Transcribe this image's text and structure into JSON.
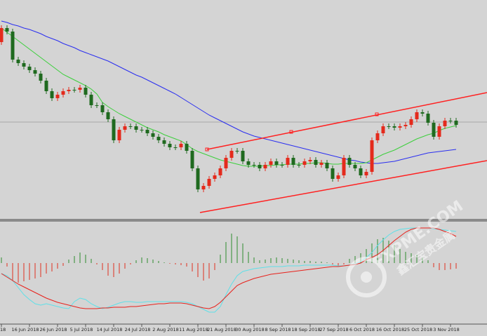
{
  "chart_data": [
    {
      "type": "candlestick",
      "categories": [
        "18",
        null,
        null,
        null,
        null,
        "16 Jun 2018",
        null,
        null,
        null,
        null,
        "26 Jun 2018",
        null,
        null,
        null,
        null,
        "5 Jul 2018",
        null,
        null,
        null,
        null,
        "14 Jul 2018",
        null,
        null,
        null,
        null,
        "24 Jul 2018",
        null,
        null,
        null,
        null,
        "2 Aug 2018",
        null,
        null,
        null,
        null,
        "11 Aug 2018",
        null,
        null,
        null,
        null,
        "21 Aug 2018",
        null,
        null,
        null,
        null,
        "30 Aug 2018",
        null,
        null,
        null,
        null,
        "8 Sep 2018",
        null,
        null,
        null,
        null,
        "18 Sep 2018",
        null,
        null,
        null,
        null,
        "27 Sep 2018",
        null,
        null,
        null,
        null,
        "6 Oct 2018",
        null,
        null,
        null,
        null,
        "16 Oct 2018",
        null,
        null,
        null,
        null,
        "25 Oct 2018",
        null,
        null,
        null,
        null,
        "3 Nov 2018",
        null
      ],
      "open": [
        252,
        272,
        267,
        227,
        222,
        217,
        212,
        207,
        197,
        182,
        172,
        177,
        182,
        184,
        184,
        187,
        177,
        162,
        162,
        152,
        142,
        112,
        127,
        132,
        132,
        127,
        127,
        122,
        117,
        112,
        107,
        102,
        102,
        107,
        97,
        72,
        42,
        47,
        57,
        62,
        72,
        87,
        97,
        97,
        82,
        77,
        77,
        72,
        77,
        82,
        77,
        77,
        87,
        77,
        77,
        82,
        84,
        77,
        80,
        72,
        57,
        62,
        87,
        77,
        72,
        62,
        67,
        112,
        122,
        132,
        132,
        130,
        132,
        134,
        142,
        152,
        150,
        137,
        117,
        132,
        140,
        140
      ],
      "high": [
        276,
        276,
        271,
        231,
        226,
        221,
        216,
        211,
        201,
        186,
        181,
        186,
        188,
        188,
        191,
        191,
        181,
        166,
        166,
        156,
        146,
        131,
        136,
        136,
        136,
        131,
        131,
        126,
        121,
        116,
        111,
        106,
        111,
        111,
        101,
        76,
        51,
        61,
        66,
        76,
        91,
        101,
        101,
        101,
        86,
        81,
        81,
        81,
        86,
        86,
        81,
        91,
        91,
        81,
        86,
        88,
        88,
        84,
        84,
        76,
        66,
        91,
        91,
        81,
        76,
        71,
        116,
        126,
        136,
        136,
        136,
        136,
        138,
        146,
        156,
        156,
        154,
        141,
        136,
        144,
        144,
        144
      ],
      "low": [
        248,
        263,
        223,
        218,
        213,
        208,
        203,
        193,
        178,
        168,
        168,
        173,
        178,
        180,
        180,
        173,
        158,
        158,
        148,
        138,
        108,
        108,
        123,
        128,
        123,
        123,
        118,
        113,
        108,
        103,
        98,
        98,
        98,
        93,
        68,
        38,
        38,
        43,
        53,
        58,
        68,
        83,
        93,
        78,
        73,
        73,
        68,
        68,
        73,
        73,
        73,
        73,
        73,
        73,
        73,
        78,
        73,
        73,
        68,
        53,
        53,
        58,
        73,
        68,
        58,
        58,
        63,
        108,
        118,
        128,
        126,
        126,
        128,
        130,
        138,
        146,
        133,
        113,
        113,
        128,
        136,
        130
      ],
      "close": [
        272,
        267,
        227,
        222,
        217,
        212,
        207,
        197,
        182,
        172,
        177,
        182,
        184,
        184,
        187,
        177,
        162,
        162,
        152,
        142,
        112,
        127,
        132,
        132,
        127,
        127,
        122,
        117,
        112,
        107,
        102,
        102,
        107,
        97,
        72,
        42,
        47,
        57,
        62,
        72,
        87,
        97,
        97,
        82,
        77,
        77,
        72,
        77,
        82,
        77,
        77,
        87,
        77,
        77,
        82,
        84,
        77,
        80,
        72,
        57,
        62,
        87,
        77,
        72,
        62,
        67,
        112,
        122,
        132,
        132,
        130,
        132,
        134,
        142,
        152,
        150,
        137,
        117,
        132,
        140,
        140,
        134
      ],
      "up_color": "#e42a1c",
      "down_color": "#1f6a1f",
      "series": [
        {
          "color": "#2a2ef0",
          "values": [
            282,
            280,
            277,
            275,
            272,
            270,
            267,
            264,
            260,
            257,
            254,
            250,
            247,
            244,
            240,
            237,
            234,
            231,
            228,
            225,
            221,
            217,
            213,
            209,
            205,
            202,
            198,
            194,
            190,
            186,
            182,
            178,
            173,
            168,
            163,
            158,
            153,
            148,
            144,
            140,
            136,
            132,
            128,
            124,
            121,
            118,
            116,
            114,
            112,
            110,
            108,
            106,
            104,
            102,
            100,
            98,
            96,
            94,
            92,
            90,
            88,
            86,
            84,
            83,
            81,
            80,
            79,
            79,
            80,
            81,
            82,
            84,
            86,
            88,
            90,
            92,
            94,
            95,
            96,
            97,
            98,
            99
          ]
        },
        {
          "color": "#3ccf3c",
          "values": [
            272,
            266,
            260,
            254,
            248,
            242,
            236,
            230,
            224,
            218,
            212,
            206,
            202,
            198,
            194,
            190,
            185,
            178,
            166,
            160,
            155,
            150,
            146,
            142,
            138,
            134,
            130,
            127,
            124,
            120,
            117,
            114,
            111,
            106,
            100,
            96,
            93,
            90,
            87,
            84,
            82,
            80,
            78,
            76,
            75,
            75,
            75,
            76,
            76,
            77,
            77,
            78,
            78,
            78,
            79,
            79,
            80,
            80,
            79,
            78,
            78,
            79,
            79,
            79,
            79,
            80,
            84,
            88,
            92,
            95,
            98,
            102,
            106,
            110,
            114,
            117,
            120,
            122,
            126,
            129,
            131,
            133
          ]
        }
      ],
      "ylim": [
        0,
        312
      ]
    },
    {
      "type": "macd",
      "values": [
        8,
        -5,
        -25,
        -28,
        -26,
        -24,
        -22,
        -20,
        -15,
        -12,
        -8,
        -4,
        5,
        10,
        15,
        12,
        6,
        -2,
        -10,
        -18,
        -20,
        -15,
        -8,
        -2,
        4,
        8,
        7,
        5,
        3,
        1,
        -1,
        -2,
        -3,
        -5,
        -12,
        -20,
        -25,
        -22,
        -10,
        12,
        30,
        42,
        38,
        28,
        16,
        8,
        4,
        5,
        7,
        8,
        7,
        6,
        5,
        4,
        3,
        3,
        2,
        2,
        1,
        -2,
        -4,
        -2,
        6,
        10,
        14,
        20,
        28,
        34,
        36,
        32,
        26,
        20,
        16,
        14,
        12,
        8,
        4,
        -6,
        -10,
        -10,
        -9,
        -8
      ],
      "up_color": "#2e8b2e",
      "down_color": "#e03020",
      "series": [
        {
          "color": "#5ee0e8",
          "values": [
            -15,
            -18,
            -25,
            -35,
            -45,
            -52,
            -58,
            -60,
            -58,
            -60,
            -62,
            -64,
            -65,
            -55,
            -50,
            -52,
            -58,
            -62,
            -65,
            -63,
            -60,
            -57,
            -55,
            -55,
            -56,
            -56,
            -55,
            -55,
            -55,
            -55,
            -55,
            -55,
            -55,
            -56,
            -58,
            -62,
            -66,
            -70,
            -70,
            -62,
            -45,
            -30,
            -18,
            -12,
            -10,
            -8,
            -7,
            -6,
            -5,
            -5,
            -5,
            -4,
            -4,
            -4,
            -3,
            -3,
            -3,
            -3,
            -3,
            -3,
            -4,
            -4,
            -3,
            -1,
            2,
            8,
            15,
            25,
            33,
            40,
            45,
            48,
            49,
            50,
            50,
            50,
            50,
            49,
            48,
            47,
            46,
            45
          ]
        },
        {
          "color": "#e8201a",
          "values": [
            -15,
            -20,
            -25,
            -30,
            -34,
            -38,
            -42,
            -46,
            -50,
            -53,
            -56,
            -58,
            -60,
            -62,
            -64,
            -65,
            -65,
            -65,
            -64,
            -64,
            -63,
            -63,
            -63,
            -62,
            -62,
            -61,
            -60,
            -59,
            -58,
            -58,
            -57,
            -57,
            -57,
            -58,
            -60,
            -62,
            -64,
            -65,
            -62,
            -56,
            -48,
            -40,
            -32,
            -28,
            -25,
            -22,
            -20,
            -18,
            -16,
            -15,
            -14,
            -13,
            -12,
            -11,
            -10,
            -9,
            -8,
            -7,
            -6,
            -5,
            -5,
            -4,
            -3,
            -2,
            0,
            5,
            8,
            12,
            18,
            25,
            32,
            38,
            44,
            48,
            50,
            50,
            50,
            50,
            48,
            45,
            42,
            38
          ]
        }
      ],
      "ylim": [
        -85,
        60
      ]
    }
  ],
  "watermark": {
    "site": "FXPME.COM",
    "brand": "鑫汇宝贵金属"
  }
}
